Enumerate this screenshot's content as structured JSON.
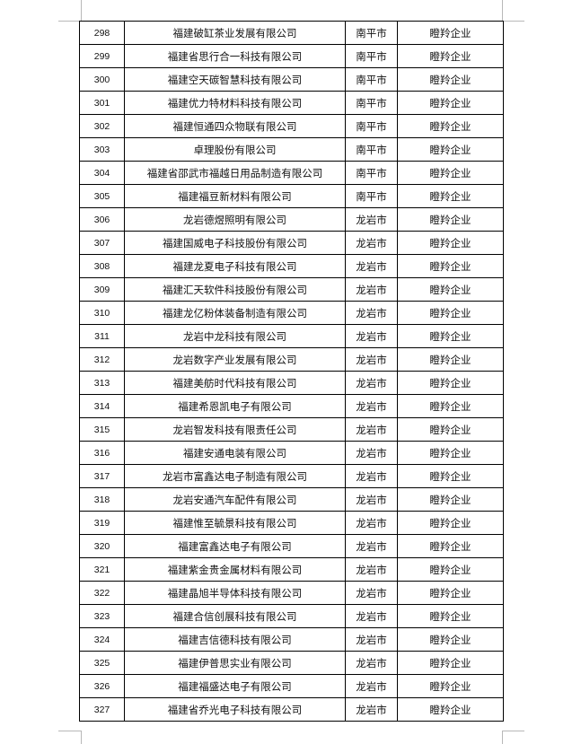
{
  "table": {
    "rows": [
      {
        "no": "298",
        "name": "福建破缸茶业发展有限公司",
        "city": "南平市",
        "type": "瞪羚企业"
      },
      {
        "no": "299",
        "name": "福建省思行合一科技有限公司",
        "city": "南平市",
        "type": "瞪羚企业"
      },
      {
        "no": "300",
        "name": "福建空天碳智慧科技有限公司",
        "city": "南平市",
        "type": "瞪羚企业"
      },
      {
        "no": "301",
        "name": "福建优力特材料科技有限公司",
        "city": "南平市",
        "type": "瞪羚企业"
      },
      {
        "no": "302",
        "name": "福建恒通四众物联有限公司",
        "city": "南平市",
        "type": "瞪羚企业"
      },
      {
        "no": "303",
        "name": "卓理股份有限公司",
        "city": "南平市",
        "type": "瞪羚企业"
      },
      {
        "no": "304",
        "name": "福建省邵武市福越日用品制造有限公司",
        "city": "南平市",
        "type": "瞪羚企业"
      },
      {
        "no": "305",
        "name": "福建福豆新材料有限公司",
        "city": "南平市",
        "type": "瞪羚企业"
      },
      {
        "no": "306",
        "name": "龙岩德煜照明有限公司",
        "city": "龙岩市",
        "type": "瞪羚企业"
      },
      {
        "no": "307",
        "name": "福建国威电子科技股份有限公司",
        "city": "龙岩市",
        "type": "瞪羚企业"
      },
      {
        "no": "308",
        "name": "福建龙夏电子科技有限公司",
        "city": "龙岩市",
        "type": "瞪羚企业"
      },
      {
        "no": "309",
        "name": "福建汇天软件科技股份有限公司",
        "city": "龙岩市",
        "type": "瞪羚企业"
      },
      {
        "no": "310",
        "name": "福建龙亿粉体装备制造有限公司",
        "city": "龙岩市",
        "type": "瞪羚企业"
      },
      {
        "no": "311",
        "name": "龙岩中龙科技有限公司",
        "city": "龙岩市",
        "type": "瞪羚企业"
      },
      {
        "no": "312",
        "name": "龙岩数字产业发展有限公司",
        "city": "龙岩市",
        "type": "瞪羚企业"
      },
      {
        "no": "313",
        "name": "福建美舫时代科技有限公司",
        "city": "龙岩市",
        "type": "瞪羚企业"
      },
      {
        "no": "314",
        "name": "福建希恩凯电子有限公司",
        "city": "龙岩市",
        "type": "瞪羚企业"
      },
      {
        "no": "315",
        "name": "龙岩智发科技有限责任公司",
        "city": "龙岩市",
        "type": "瞪羚企业"
      },
      {
        "no": "316",
        "name": "福建安通电装有限公司",
        "city": "龙岩市",
        "type": "瞪羚企业"
      },
      {
        "no": "317",
        "name": "龙岩市富鑫达电子制造有限公司",
        "city": "龙岩市",
        "type": "瞪羚企业"
      },
      {
        "no": "318",
        "name": "龙岩安通汽车配件有限公司",
        "city": "龙岩市",
        "type": "瞪羚企业"
      },
      {
        "no": "319",
        "name": "福建惟至毓景科技有限公司",
        "city": "龙岩市",
        "type": "瞪羚企业"
      },
      {
        "no": "320",
        "name": "福建富鑫达电子有限公司",
        "city": "龙岩市",
        "type": "瞪羚企业"
      },
      {
        "no": "321",
        "name": "福建紫金贵金属材料有限公司",
        "city": "龙岩市",
        "type": "瞪羚企业"
      },
      {
        "no": "322",
        "name": "福建晶旭半导体科技有限公司",
        "city": "龙岩市",
        "type": "瞪羚企业"
      },
      {
        "no": "323",
        "name": "福建合信创展科技有限公司",
        "city": "龙岩市",
        "type": "瞪羚企业"
      },
      {
        "no": "324",
        "name": "福建吉信德科技有限公司",
        "city": "龙岩市",
        "type": "瞪羚企业"
      },
      {
        "no": "325",
        "name": "福建伊普思实业有限公司",
        "city": "龙岩市",
        "type": "瞪羚企业"
      },
      {
        "no": "326",
        "name": "福建福盛达电子有限公司",
        "city": "龙岩市",
        "type": "瞪羚企业"
      },
      {
        "no": "327",
        "name": "福建省乔光电子科技有限公司",
        "city": "龙岩市",
        "type": "瞪羚企业"
      }
    ]
  }
}
